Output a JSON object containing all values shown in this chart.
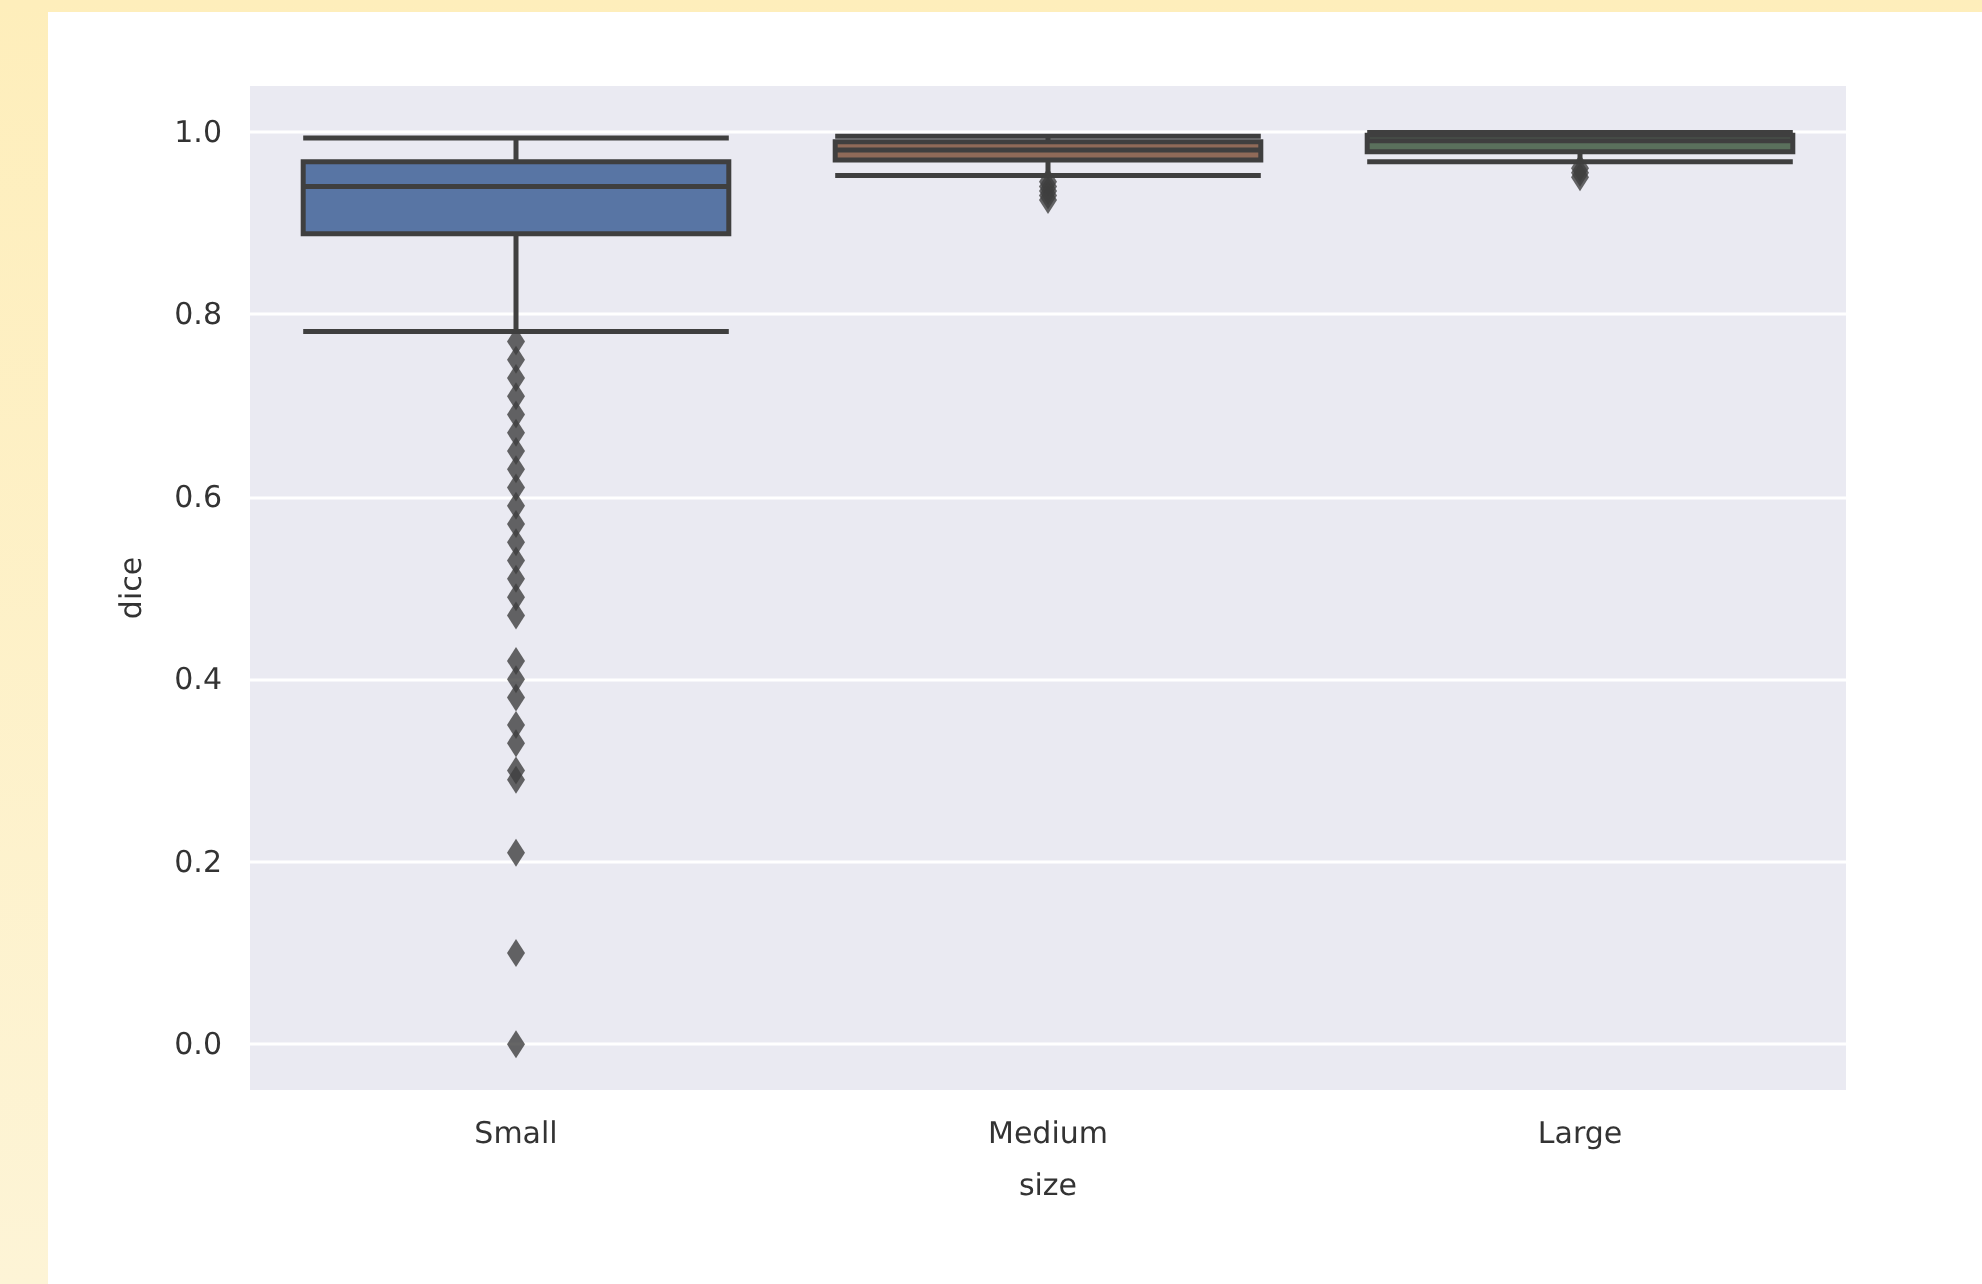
{
  "chart_data": {
    "type": "box",
    "xlabel": "size",
    "ylabel": "dice",
    "categories": [
      "Small",
      "Medium",
      "Large"
    ],
    "colors": [
      "#5875a4",
      "#8f6a58",
      "#5a705c"
    ],
    "boxes": [
      {
        "low": 0.781,
        "q1": 0.888,
        "median": 0.94,
        "q3": 0.967,
        "high": 0.993,
        "outliers": [
          0.77,
          0.75,
          0.73,
          0.71,
          0.69,
          0.67,
          0.65,
          0.63,
          0.61,
          0.59,
          0.57,
          0.55,
          0.53,
          0.51,
          0.49,
          0.47,
          0.42,
          0.4,
          0.38,
          0.35,
          0.33,
          0.3,
          0.29,
          0.21,
          0.1,
          0.0
        ]
      },
      {
        "low": 0.952,
        "q1": 0.969,
        "median": 0.98,
        "q3": 0.989,
        "high": 0.995,
        "outliers": [
          0.945,
          0.94,
          0.935,
          0.93,
          0.925
        ]
      },
      {
        "low": 0.967,
        "q1": 0.978,
        "median": 0.99,
        "q3": 0.996,
        "high": 0.999,
        "outliers": [
          0.96,
          0.955,
          0.95
        ]
      }
    ],
    "ylim": [
      -0.05,
      1.05
    ],
    "yticks": [
      {
        "value": 0,
        "label": "0.0"
      },
      0.2,
      0.4,
      0.6,
      0.8,
      {
        "value": 1,
        "label": "1.0"
      }
    ],
    "grid": "y"
  }
}
